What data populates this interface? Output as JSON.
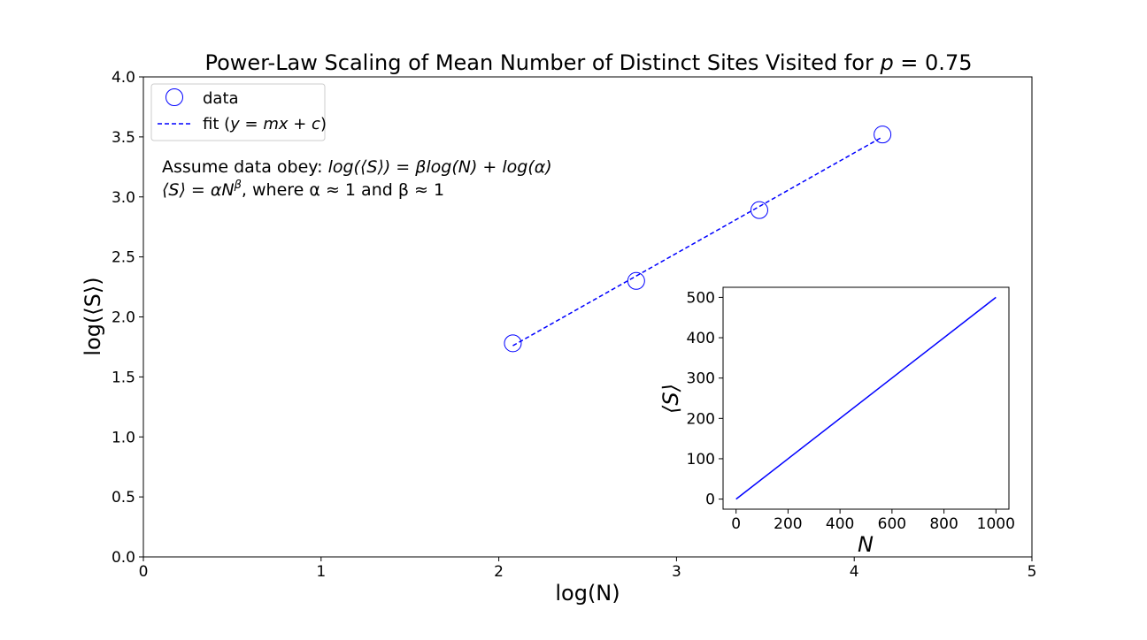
{
  "title": {
    "prefix": "Power-Law Scaling of Mean Number of Distinct Sites Visited for ",
    "var": "p",
    "suffix": " = 0.75"
  },
  "annotation": {
    "line1_prefix": "Assume data obey: ",
    "line1_math": "log(⟨S⟩) = βlog(N) + log(α)",
    "line2_math": "⟨S⟩ = αN",
    "line2_sup": "β",
    "line2_rest": ", where α ≈ 1 and β ≈ 1"
  },
  "legend": {
    "position": "upper-left",
    "data_label": "data",
    "fit_label_prefix": "fit (",
    "fit_label_math": "y = mx + c",
    "fit_label_suffix": ")"
  },
  "colors": {
    "series": "#0000ff",
    "axes": "#000000",
    "background": "#ffffff"
  },
  "chart_data": [
    {
      "type": "scatter",
      "xlabel": "log(N)",
      "ylabel": "log(⟨S⟩)",
      "xlim": [
        0,
        5
      ],
      "ylim": [
        0,
        4
      ],
      "xticks": [
        0,
        1,
        2,
        3,
        4,
        5
      ],
      "yticks": [
        0.0,
        0.5,
        1.0,
        1.5,
        2.0,
        2.5,
        3.0,
        3.5,
        4.0
      ],
      "grid": false,
      "series": [
        {
          "name": "data",
          "style": "open-circle",
          "x": [
            2.079,
            2.773,
            3.466,
            4.159
          ],
          "y": [
            1.78,
            2.3,
            2.89,
            3.52
          ]
        },
        {
          "name": "fit (y = mx + c)",
          "style": "dashed-line",
          "x": [
            2.079,
            4.159
          ],
          "y": [
            1.76,
            3.5
          ]
        }
      ]
    },
    {
      "type": "line",
      "xlabel": "N",
      "ylabel": "⟨S⟩",
      "xlim": [
        -50,
        1050
      ],
      "ylim": [
        -25,
        525
      ],
      "xticks": [
        0,
        200,
        400,
        600,
        800,
        1000
      ],
      "yticks": [
        0,
        100,
        200,
        300,
        400,
        500
      ],
      "grid": false,
      "series": [
        {
          "x": [
            0,
            1000
          ],
          "y": [
            0,
            500
          ]
        }
      ]
    }
  ]
}
